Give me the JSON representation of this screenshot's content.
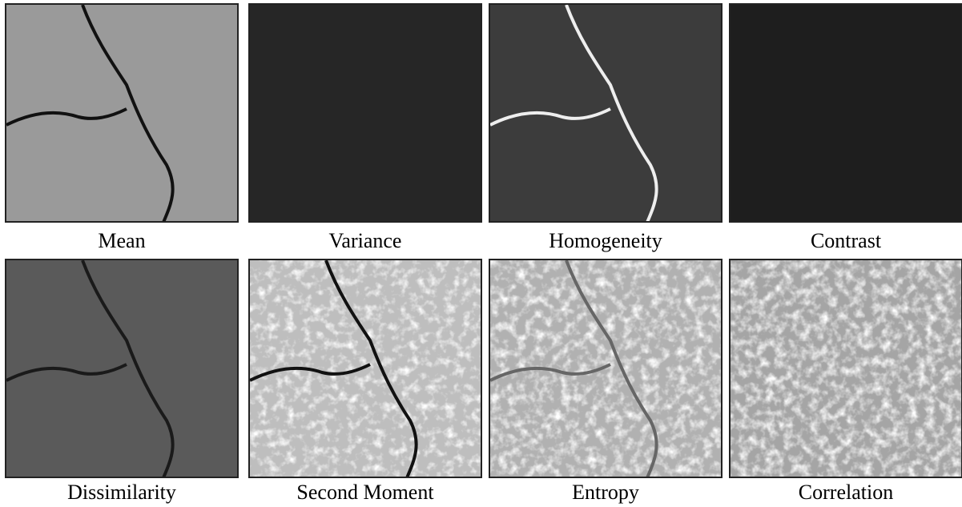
{
  "panels": [
    {
      "label": "Mean"
    },
    {
      "label": "Variance"
    },
    {
      "label": "Homogeneity"
    },
    {
      "label": "Contrast"
    },
    {
      "label": "Dissimilarity"
    },
    {
      "label": "Second Moment"
    },
    {
      "label": "Entropy"
    },
    {
      "label": "Correlation"
    }
  ]
}
